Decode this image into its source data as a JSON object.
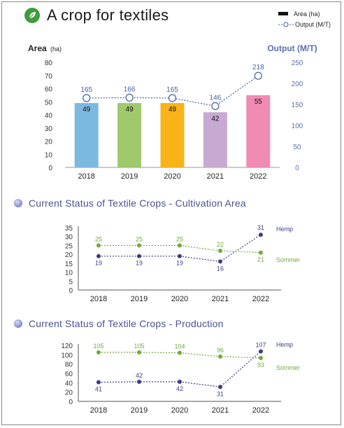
{
  "page": {
    "title": "A crop for textiles",
    "legend": {
      "bar_label": "Area (ha)",
      "line_label": "Output (M/T)"
    }
  },
  "sections": {
    "area_title": "Current Status of Textile Crops - Cultivation Area",
    "production_title": "Current Status of Textile Crops - Production"
  },
  "colors": {
    "bars": [
      "#7bb9e1",
      "#9fc96a",
      "#f8b318",
      "#c7a9d2",
      "#f08bb3"
    ],
    "output_line": "#3f5ea8",
    "hemp": "#3d3b86",
    "sommer": "#74a93a",
    "axis_text": "#333333",
    "right_axis_text": "#5a6fb0"
  },
  "chart_data": [
    {
      "type": "bar",
      "categories": [
        "2018",
        "2019",
        "2020",
        "2021",
        "2022"
      ],
      "yaxis_left": {
        "label": "Area",
        "unit": "(ha)",
        "ticks": [
          0,
          10,
          20,
          30,
          40,
          50,
          60,
          70,
          80
        ],
        "ylim": [
          0,
          80
        ]
      },
      "yaxis_right": {
        "label": "Output (M/T)",
        "ticks": [
          0,
          50,
          100,
          150,
          200,
          250
        ],
        "ylim": [
          0,
          250
        ]
      },
      "series": [
        {
          "name": "Area (ha)",
          "type": "bar",
          "values": [
            49,
            49,
            49,
            42,
            55
          ]
        },
        {
          "name": "Output (M/T)",
          "type": "line",
          "axis": "right",
          "values": [
            165,
            166,
            165,
            146,
            218
          ]
        }
      ],
      "grid": false
    },
    {
      "type": "line",
      "categories": [
        "2018",
        "2019",
        "2020",
        "2021",
        "2022"
      ],
      "ylim": [
        0,
        35
      ],
      "yticks": [
        0,
        5,
        10,
        15,
        20,
        25,
        30,
        35
      ],
      "series": [
        {
          "name": "Hemp",
          "values": [
            19,
            19,
            19,
            16,
            31
          ]
        },
        {
          "name": "Sommer",
          "values": [
            25,
            25,
            25,
            22,
            21
          ]
        }
      ],
      "grid": false
    },
    {
      "type": "line",
      "categories": [
        "2018",
        "2019",
        "2020",
        "2021",
        "2022"
      ],
      "ylim": [
        0,
        120
      ],
      "yticks": [
        0,
        20,
        40,
        60,
        80,
        100,
        120
      ],
      "series": [
        {
          "name": "Hemp",
          "values": [
            41,
            42,
            42,
            31,
            107
          ]
        },
        {
          "name": "Sommer",
          "values": [
            105,
            105,
            104,
            96,
            93
          ]
        }
      ],
      "grid": false
    }
  ]
}
